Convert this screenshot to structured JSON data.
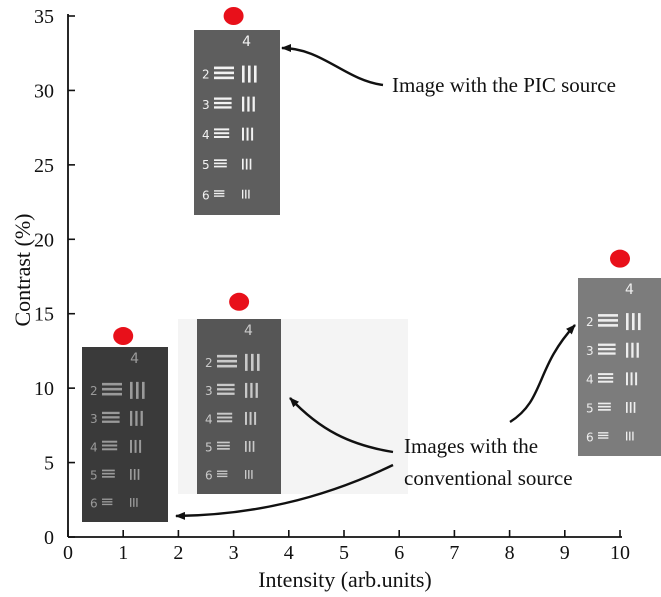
{
  "chart_data": {
    "type": "scatter",
    "xlabel": "Intensity (arb.units)",
    "ylabel": "Contrast (%)",
    "xlim": [
      0,
      10
    ],
    "ylim": [
      0,
      35
    ],
    "x_ticks": [
      0,
      1,
      2,
      3,
      4,
      5,
      6,
      7,
      8,
      9,
      10
    ],
    "y_ticks": [
      0,
      5,
      10,
      15,
      20,
      25,
      30,
      35
    ],
    "grid": false,
    "marker_color": "#e8101a",
    "points": [
      {
        "x": 1.0,
        "y": 13.5
      },
      {
        "x": 3.1,
        "y": 15.8
      },
      {
        "x": 3.0,
        "y": 35.0
      },
      {
        "x": 10.0,
        "y": 18.7
      }
    ],
    "annotations": [
      "Image with the PIC source",
      "Images with the",
      "conventional source"
    ],
    "inset_images": [
      {
        "label": "4",
        "rows": [
          "2",
          "3",
          "4",
          "5",
          "6"
        ]
      },
      {
        "label": "4",
        "rows": [
          "2",
          "3",
          "4",
          "5",
          "6"
        ]
      },
      {
        "label": "4",
        "rows": [
          "2",
          "3",
          "4",
          "5",
          "6"
        ]
      },
      {
        "label": "4",
        "rows": [
          "2",
          "3",
          "4",
          "5",
          "6"
        ]
      }
    ]
  }
}
